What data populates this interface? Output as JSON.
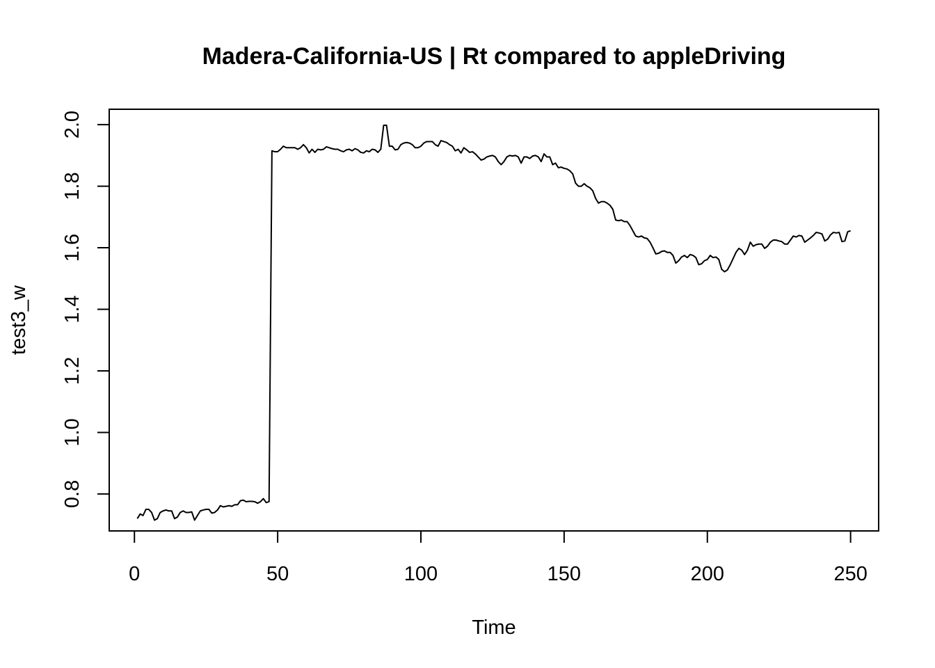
{
  "chart_data": {
    "type": "line",
    "title": "Madera-California-US | Rt compared to appleDriving",
    "xlabel": "Time",
    "ylabel": "test3_w",
    "xlim": [
      -8.8,
      259.8
    ],
    "ylim": [
      0.68,
      2.05
    ],
    "xticks": [
      0,
      50,
      100,
      150,
      200,
      250
    ],
    "yticks": [
      0.8,
      1.0,
      1.2,
      1.4,
      1.6,
      1.8,
      2.0
    ],
    "ytick_labels": [
      "0.8",
      "1.0",
      "1.2",
      "1.4",
      "1.6",
      "1.8",
      "2.0"
    ],
    "grid": false,
    "legend": "none",
    "line_color": "#000000",
    "series": [
      {
        "points": [
          [
            1,
            0.72
          ],
          [
            2,
            0.735
          ],
          [
            3,
            0.73
          ],
          [
            4,
            0.75
          ],
          [
            5,
            0.75
          ],
          [
            6,
            0.74
          ],
          [
            7,
            0.715
          ],
          [
            8,
            0.72
          ],
          [
            9,
            0.74
          ],
          [
            10,
            0.745
          ],
          [
            11,
            0.748
          ],
          [
            12,
            0.745
          ],
          [
            13,
            0.745
          ],
          [
            14,
            0.72
          ],
          [
            15,
            0.725
          ],
          [
            16,
            0.74
          ],
          [
            17,
            0.745
          ],
          [
            18,
            0.74
          ],
          [
            19,
            0.74
          ],
          [
            20,
            0.742
          ],
          [
            21,
            0.715
          ],
          [
            22,
            0.73
          ],
          [
            23,
            0.745
          ],
          [
            24,
            0.748
          ],
          [
            25,
            0.75
          ],
          [
            26,
            0.75
          ],
          [
            27,
            0.738
          ],
          [
            28,
            0.74
          ],
          [
            29,
            0.748
          ],
          [
            30,
            0.762
          ],
          [
            31,
            0.758
          ],
          [
            32,
            0.76
          ],
          [
            33,
            0.762
          ],
          [
            34,
            0.76
          ],
          [
            35,
            0.765
          ],
          [
            36,
            0.765
          ],
          [
            37,
            0.778
          ],
          [
            38,
            0.78
          ],
          [
            39,
            0.775
          ],
          [
            40,
            0.776
          ],
          [
            41,
            0.776
          ],
          [
            42,
            0.775
          ],
          [
            43,
            0.77
          ],
          [
            44,
            0.775
          ],
          [
            45,
            0.785
          ],
          [
            46,
            0.772
          ],
          [
            47,
            0.775
          ],
          [
            48,
            1.915
          ],
          [
            49,
            1.912
          ],
          [
            50,
            1.912
          ],
          [
            51,
            1.92
          ],
          [
            52,
            1.93
          ],
          [
            53,
            1.925
          ],
          [
            54,
            1.925
          ],
          [
            55,
            1.925
          ],
          [
            56,
            1.925
          ],
          [
            57,
            1.92
          ],
          [
            58,
            1.925
          ],
          [
            59,
            1.935
          ],
          [
            60,
            1.925
          ],
          [
            61,
            1.908
          ],
          [
            62,
            1.92
          ],
          [
            63,
            1.91
          ],
          [
            64,
            1.92
          ],
          [
            65,
            1.918
          ],
          [
            66,
            1.92
          ],
          [
            67,
            1.928
          ],
          [
            68,
            1.925
          ],
          [
            69,
            1.922
          ],
          [
            70,
            1.92
          ],
          [
            71,
            1.92
          ],
          [
            72,
            1.915
          ],
          [
            73,
            1.912
          ],
          [
            74,
            1.918
          ],
          [
            75,
            1.92
          ],
          [
            76,
            1.915
          ],
          [
            77,
            1.922
          ],
          [
            78,
            1.918
          ],
          [
            79,
            1.91
          ],
          [
            80,
            1.908
          ],
          [
            81,
            1.915
          ],
          [
            82,
            1.912
          ],
          [
            83,
            1.92
          ],
          [
            84,
            1.918
          ],
          [
            85,
            1.91
          ],
          [
            86,
            1.92
          ],
          [
            87,
            1.998
          ],
          [
            88,
            1.998
          ],
          [
            89,
            1.93
          ],
          [
            90,
            1.93
          ],
          [
            91,
            1.918
          ],
          [
            92,
            1.92
          ],
          [
            93,
            1.935
          ],
          [
            94,
            1.94
          ],
          [
            95,
            1.942
          ],
          [
            96,
            1.94
          ],
          [
            97,
            1.935
          ],
          [
            98,
            1.925
          ],
          [
            99,
            1.925
          ],
          [
            100,
            1.93
          ],
          [
            101,
            1.94
          ],
          [
            102,
            1.945
          ],
          [
            103,
            1.945
          ],
          [
            104,
            1.945
          ],
          [
            105,
            1.935
          ],
          [
            106,
            1.93
          ],
          [
            107,
            1.948
          ],
          [
            108,
            1.945
          ],
          [
            109,
            1.942
          ],
          [
            110,
            1.935
          ],
          [
            111,
            1.93
          ],
          [
            112,
            1.915
          ],
          [
            113,
            1.92
          ],
          [
            114,
            1.908
          ],
          [
            115,
            1.925
          ],
          [
            116,
            1.918
          ],
          [
            117,
            1.91
          ],
          [
            118,
            1.912
          ],
          [
            119,
            1.905
          ],
          [
            120,
            1.895
          ],
          [
            121,
            1.885
          ],
          [
            122,
            1.888
          ],
          [
            123,
            1.895
          ],
          [
            124,
            1.898
          ],
          [
            125,
            1.9
          ],
          [
            126,
            1.895
          ],
          [
            127,
            1.88
          ],
          [
            128,
            1.87
          ],
          [
            129,
            1.88
          ],
          [
            130,
            1.895
          ],
          [
            131,
            1.9
          ],
          [
            132,
            1.898
          ],
          [
            133,
            1.9
          ],
          [
            134,
            1.895
          ],
          [
            135,
            1.875
          ],
          [
            136,
            1.895
          ],
          [
            137,
            1.895
          ],
          [
            138,
            1.89
          ],
          [
            139,
            1.898
          ],
          [
            140,
            1.9
          ],
          [
            141,
            1.895
          ],
          [
            142,
            1.88
          ],
          [
            143,
            1.905
          ],
          [
            144,
            1.895
          ],
          [
            145,
            1.895
          ],
          [
            146,
            1.87
          ],
          [
            147,
            1.875
          ],
          [
            148,
            1.86
          ],
          [
            149,
            1.862
          ],
          [
            150,
            1.858
          ],
          [
            151,
            1.856
          ],
          [
            152,
            1.85
          ],
          [
            153,
            1.84
          ],
          [
            154,
            1.81
          ],
          [
            155,
            1.8
          ],
          [
            156,
            1.8
          ],
          [
            157,
            1.808
          ],
          [
            158,
            1.8
          ],
          [
            159,
            1.795
          ],
          [
            160,
            1.785
          ],
          [
            161,
            1.76
          ],
          [
            162,
            1.745
          ],
          [
            163,
            1.75
          ],
          [
            164,
            1.75
          ],
          [
            165,
            1.745
          ],
          [
            166,
            1.738
          ],
          [
            167,
            1.725
          ],
          [
            168,
            1.69
          ],
          [
            169,
            1.688
          ],
          [
            170,
            1.69
          ],
          [
            171,
            1.685
          ],
          [
            172,
            1.685
          ],
          [
            173,
            1.672
          ],
          [
            174,
            1.655
          ],
          [
            175,
            1.638
          ],
          [
            176,
            1.635
          ],
          [
            177,
            1.638
          ],
          [
            178,
            1.632
          ],
          [
            179,
            1.63
          ],
          [
            180,
            1.618
          ],
          [
            181,
            1.6
          ],
          [
            182,
            1.58
          ],
          [
            183,
            1.582
          ],
          [
            184,
            1.588
          ],
          [
            185,
            1.59
          ],
          [
            186,
            1.585
          ],
          [
            187,
            1.585
          ],
          [
            188,
            1.575
          ],
          [
            189,
            1.55
          ],
          [
            190,
            1.558
          ],
          [
            191,
            1.57
          ],
          [
            192,
            1.575
          ],
          [
            193,
            1.568
          ],
          [
            194,
            1.578
          ],
          [
            195,
            1.575
          ],
          [
            196,
            1.568
          ],
          [
            197,
            1.545
          ],
          [
            198,
            1.548
          ],
          [
            199,
            1.558
          ],
          [
            200,
            1.562
          ],
          [
            201,
            1.575
          ],
          [
            202,
            1.568
          ],
          [
            203,
            1.57
          ],
          [
            204,
            1.562
          ],
          [
            205,
            1.53
          ],
          [
            206,
            1.522
          ],
          [
            207,
            1.528
          ],
          [
            208,
            1.545
          ],
          [
            209,
            1.565
          ],
          [
            210,
            1.585
          ],
          [
            211,
            1.598
          ],
          [
            212,
            1.592
          ],
          [
            213,
            1.578
          ],
          [
            214,
            1.592
          ],
          [
            215,
            1.618
          ],
          [
            216,
            1.605
          ],
          [
            217,
            1.61
          ],
          [
            218,
            1.612
          ],
          [
            219,
            1.612
          ],
          [
            220,
            1.598
          ],
          [
            221,
            1.605
          ],
          [
            222,
            1.618
          ],
          [
            223,
            1.625
          ],
          [
            224,
            1.625
          ],
          [
            225,
            1.622
          ],
          [
            226,
            1.62
          ],
          [
            227,
            1.612
          ],
          [
            228,
            1.612
          ],
          [
            229,
            1.625
          ],
          [
            230,
            1.638
          ],
          [
            231,
            1.635
          ],
          [
            232,
            1.64
          ],
          [
            233,
            1.638
          ],
          [
            234,
            1.618
          ],
          [
            235,
            1.625
          ],
          [
            236,
            1.632
          ],
          [
            237,
            1.64
          ],
          [
            238,
            1.65
          ],
          [
            239,
            1.648
          ],
          [
            240,
            1.645
          ],
          [
            241,
            1.622
          ],
          [
            242,
            1.628
          ],
          [
            243,
            1.642
          ],
          [
            244,
            1.65
          ],
          [
            245,
            1.648
          ],
          [
            246,
            1.65
          ],
          [
            247,
            1.62
          ],
          [
            248,
            1.622
          ],
          [
            249,
            1.652
          ],
          [
            250,
            1.655
          ]
        ]
      }
    ]
  }
}
